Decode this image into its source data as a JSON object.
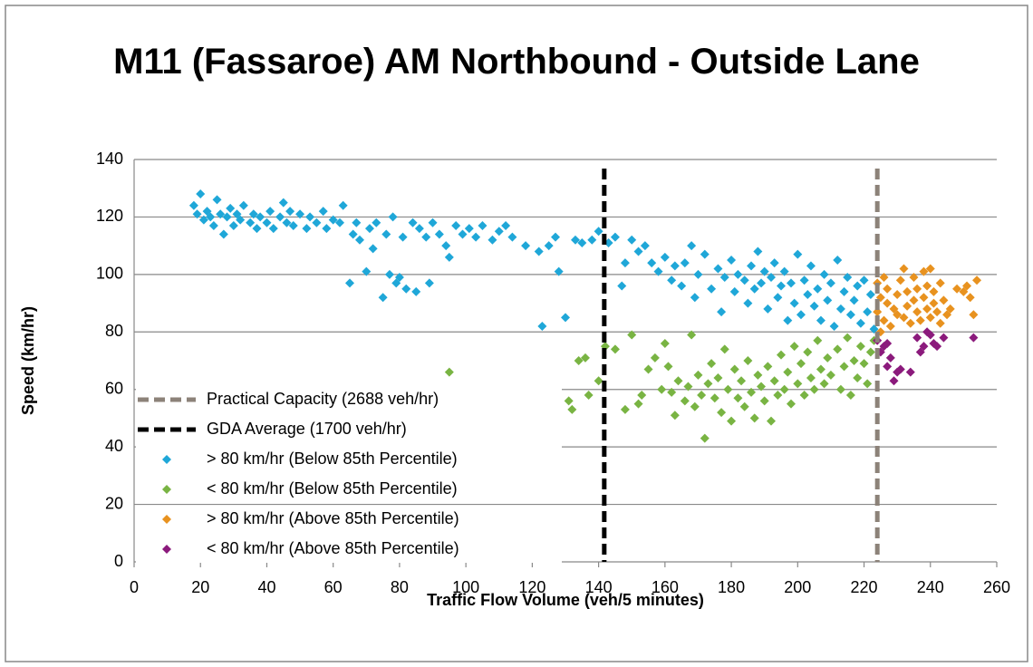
{
  "chart_data": {
    "type": "scatter",
    "title": "M11 (Fassaroe) AM Northbound - Outside Lane",
    "x_label": "Traffic Flow Volume (veh/5 minutes)",
    "y_label": "Speed (km/hr)",
    "xlim": [
      0,
      260
    ],
    "xticks": [
      0,
      20,
      40,
      60,
      80,
      100,
      120,
      140,
      160,
      180,
      200,
      220,
      240,
      260
    ],
    "ylim": [
      0,
      140
    ],
    "yticks": [
      0,
      20,
      40,
      60,
      80,
      100,
      120,
      140
    ],
    "grid": true,
    "legend": "lower left",
    "reference_lines": [
      {
        "name": "Practical Capacity (2688 veh/hr)",
        "color": "#8c8279",
        "x": 224
      },
      {
        "name": "GDA Average (1700 veh/hr)",
        "color": "#000000",
        "x": 141.7
      }
    ],
    "series": [
      {
        "name": "> 80 km/hr (Below 85th Percentile)",
        "color": "#1fa7d8",
        "x": [
          18,
          19,
          20,
          21,
          22,
          23,
          24,
          25,
          26,
          27,
          28,
          29,
          30,
          31,
          32,
          33,
          35,
          36,
          37,
          38,
          40,
          41,
          42,
          44,
          45,
          46,
          47,
          48,
          50,
          52,
          53,
          55,
          57,
          58,
          60,
          62,
          63,
          65,
          66,
          67,
          68,
          70,
          71,
          72,
          73,
          75,
          76,
          77,
          78,
          79,
          80,
          81,
          82,
          84,
          85,
          86,
          88,
          89,
          90,
          92,
          94,
          95,
          97,
          99,
          101,
          103,
          105,
          108,
          110,
          112,
          114,
          118,
          122,
          123,
          125,
          127,
          128,
          130,
          133,
          135,
          138,
          140,
          143,
          145,
          147,
          148,
          150,
          152,
          154,
          156,
          158,
          160,
          162,
          163,
          165,
          166,
          168,
          169,
          170,
          172,
          174,
          176,
          177,
          178,
          180,
          181,
          182,
          184,
          185,
          186,
          187,
          188,
          189,
          190,
          191,
          192,
          193,
          194,
          195,
          196,
          197,
          198,
          199,
          200,
          201,
          202,
          203,
          204,
          205,
          206,
          207,
          208,
          209,
          210,
          211,
          212,
          213,
          214,
          215,
          216,
          217,
          218,
          219,
          220,
          221,
          222,
          223
        ],
        "values": [
          124,
          121,
          128,
          119,
          122,
          120,
          117,
          126,
          121,
          114,
          120,
          123,
          117,
          121,
          119,
          124,
          118,
          121,
          116,
          120,
          118,
          122,
          116,
          120,
          125,
          118,
          122,
          117,
          121,
          116,
          120,
          118,
          122,
          116,
          119,
          118,
          124,
          97,
          114,
          118,
          112,
          101,
          116,
          109,
          118,
          92,
          114,
          100,
          120,
          97,
          99,
          113,
          95,
          118,
          94,
          116,
          113,
          97,
          118,
          114,
          110,
          106,
          117,
          114,
          116,
          113,
          117,
          112,
          115,
          117,
          113,
          110,
          108,
          82,
          110,
          113,
          101,
          85,
          112,
          111,
          112,
          115,
          111,
          113,
          96,
          104,
          112,
          108,
          110,
          104,
          101,
          106,
          98,
          103,
          96,
          104,
          110,
          92,
          100,
          107,
          95,
          102,
          87,
          99,
          105,
          94,
          100,
          98,
          90,
          103,
          95,
          108,
          97,
          101,
          88,
          99,
          104,
          92,
          96,
          101,
          84,
          97,
          90,
          107,
          86,
          98,
          93,
          103,
          89,
          95,
          84,
          100,
          91,
          97,
          82,
          105,
          88,
          94,
          99,
          86,
          91,
          96,
          83,
          98,
          87,
          93,
          81
        ]
      },
      {
        "name": "< 80 km/hr (Below 85th Percentile)",
        "color": "#79b443",
        "x": [
          95,
          131,
          132,
          134,
          136,
          137,
          140,
          142,
          145,
          148,
          150,
          152,
          153,
          155,
          157,
          159,
          160,
          161,
          162,
          163,
          164,
          166,
          167,
          168,
          169,
          170,
          171,
          172,
          173,
          174,
          175,
          176,
          177,
          178,
          179,
          180,
          181,
          182,
          183,
          184,
          185,
          186,
          187,
          188,
          189,
          190,
          191,
          192,
          193,
          194,
          195,
          196,
          197,
          198,
          199,
          200,
          201,
          202,
          203,
          204,
          205,
          206,
          207,
          208,
          209,
          210,
          212,
          213,
          214,
          215,
          216,
          217,
          218,
          219,
          220,
          221,
          222,
          223
        ],
        "values": [
          66,
          56,
          53,
          70,
          71,
          58,
          63,
          75,
          74,
          53,
          79,
          55,
          58,
          67,
          71,
          60,
          76,
          68,
          59,
          51,
          63,
          56,
          61,
          79,
          54,
          65,
          58,
          43,
          62,
          69,
          57,
          64,
          52,
          74,
          60,
          49,
          67,
          57,
          63,
          54,
          70,
          59,
          50,
          65,
          61,
          56,
          68,
          49,
          63,
          58,
          72,
          60,
          66,
          55,
          75,
          62,
          69,
          58,
          73,
          64,
          60,
          77,
          67,
          62,
          71,
          65,
          74,
          60,
          68,
          78,
          58,
          70,
          64,
          75,
          69,
          62,
          73,
          77
        ]
      },
      {
        "name": "> 80 km/hr (Above 85th Percentile)",
        "color": "#e8921f",
        "x": [
          224,
          224,
          225,
          225,
          226,
          226,
          227,
          227,
          228,
          229,
          230,
          230,
          231,
          232,
          232,
          233,
          233,
          234,
          235,
          235,
          236,
          236,
          237,
          238,
          238,
          239,
          239,
          240,
          240,
          241,
          241,
          242,
          243,
          243,
          244,
          245,
          246,
          248,
          250,
          251,
          252,
          253,
          254
        ],
        "values": [
          97,
          87,
          92,
          80,
          99,
          84,
          90,
          95,
          82,
          88,
          93,
          86,
          98,
          85,
          102,
          89,
          94,
          83,
          91,
          99,
          87,
          95,
          84,
          92,
          101,
          88,
          96,
          85,
          102,
          90,
          94,
          87,
          97,
          83,
          91,
          86,
          88,
          95,
          94,
          96,
          92,
          86,
          98
        ]
      },
      {
        "name": "< 80 km/hr (Above 85th Percentile)",
        "color": "#8b1a7c",
        "x": [
          224,
          225,
          226,
          227,
          227,
          228,
          229,
          230,
          231,
          234,
          236,
          237,
          238,
          239,
          240,
          241,
          242,
          244,
          253
        ],
        "values": [
          77,
          73,
          75,
          68,
          76,
          71,
          63,
          66,
          67,
          66,
          78,
          73,
          75,
          80,
          79,
          76,
          75,
          78,
          78
        ]
      }
    ]
  }
}
